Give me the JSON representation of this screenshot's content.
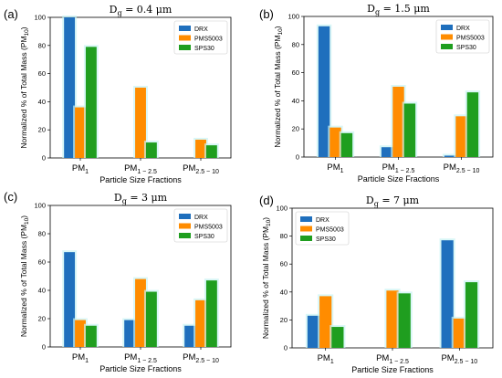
{
  "colors": {
    "DRX": "#1f6fbd",
    "PMS5003": "#ff8c00",
    "SPS30": "#1f9e1f",
    "highlight": "#c9f3f3"
  },
  "chart_data": [
    {
      "type": "bar",
      "panel": "(a)",
      "title": "Dg = 0.4 μm",
      "title_main": "D",
      "title_sub": "g",
      "title_rest": " = 0.4 μm",
      "xlabel": "Particle Size Fractions",
      "ylabel": "Normalized % of Total Mass (PM10)",
      "ylabel_main": "Normalized % of Total Mass (PM",
      "ylabel_sub": "10",
      "ylabel_end": ")",
      "ylim": [
        0,
        100
      ],
      "yticks": [
        "0",
        "20",
        "40",
        "60",
        "80",
        "100"
      ],
      "categories": [
        "PM1",
        "PM1−2.5",
        "PM2.5−10"
      ],
      "category_main": [
        "PM",
        "PM",
        "PM"
      ],
      "category_sub": [
        "1",
        "1 − 2.5",
        "2.5 − 10"
      ],
      "legend": "top-right",
      "series": [
        {
          "name": "DRX",
          "values": [
            100,
            0,
            0
          ]
        },
        {
          "name": "PMS5003",
          "values": [
            36,
            50,
            13
          ]
        },
        {
          "name": "SPS30",
          "values": [
            79,
            11,
            9
          ]
        }
      ]
    },
    {
      "type": "bar",
      "panel": "(b)",
      "title": "Dg = 1.5 μm",
      "title_main": "D",
      "title_sub": "g",
      "title_rest": " = 1.5 μm",
      "xlabel": "Particle Size Fractions",
      "ylabel": "Normalized % of Total Mass (PM10)",
      "ylabel_main": "Normalized % of Total Mass (PM",
      "ylabel_sub": "10",
      "ylabel_end": ")",
      "ylim": [
        0,
        100
      ],
      "yticks": [
        "0",
        "20",
        "40",
        "60",
        "80",
        "100"
      ],
      "categories": [
        "PM1",
        "PM1−2.5",
        "PM2.5−10"
      ],
      "category_main": [
        "PM",
        "PM",
        "PM"
      ],
      "category_sub": [
        "1",
        "1 − 2.5",
        "2.5 − 10"
      ],
      "legend": "top-right",
      "series": [
        {
          "name": "DRX",
          "values": [
            93,
            7,
            1
          ]
        },
        {
          "name": "PMS5003",
          "values": [
            21,
            50,
            29
          ]
        },
        {
          "name": "SPS30",
          "values": [
            17,
            38,
            46
          ]
        }
      ]
    },
    {
      "type": "bar",
      "panel": "(c)",
      "title": "Dg = 3 μm",
      "title_main": "D",
      "title_sub": "g",
      "title_rest": " = 3 μm",
      "xlabel": "Particle Size Fractions",
      "ylabel": "Normalized % of Total Mass (PM10)",
      "ylabel_main": "Normalized % of Total Mass (PM",
      "ylabel_sub": "10",
      "ylabel_end": ")",
      "ylim": [
        0,
        100
      ],
      "yticks": [
        "0",
        "20",
        "40",
        "60",
        "80",
        "100"
      ],
      "categories": [
        "PM1",
        "PM1−2.5",
        "PM2.5−10"
      ],
      "category_main": [
        "PM",
        "PM",
        "PM"
      ],
      "category_sub": [
        "1",
        "1 − 2.5",
        "2.5 − 10"
      ],
      "legend": "top-right",
      "series": [
        {
          "name": "DRX",
          "values": [
            67,
            19,
            15
          ]
        },
        {
          "name": "PMS5003",
          "values": [
            19,
            48,
            33
          ]
        },
        {
          "name": "SPS30",
          "values": [
            15,
            39,
            47
          ]
        }
      ]
    },
    {
      "type": "bar",
      "panel": "(d)",
      "title": "Dg = 7 μm",
      "title_main": "D",
      "title_sub": "g",
      "title_rest": " = 7 μm",
      "xlabel": "Particle Size Fractions",
      "ylabel": "Normalized % of Total Mass (PM10)",
      "ylabel_main": "Normalized % of Total Mass (PM",
      "ylabel_sub": "10",
      "ylabel_end": ")",
      "ylim": [
        0,
        100
      ],
      "yticks": [
        "0",
        "20",
        "40",
        "60",
        "80",
        "100"
      ],
      "categories": [
        "PM1",
        "PM1−2.5",
        "PM2.5−10"
      ],
      "category_main": [
        "PM",
        "PM",
        "PM"
      ],
      "category_sub": [
        "1",
        "1 − 2.5",
        "2.5 − 10"
      ],
      "legend": "top-left",
      "series": [
        {
          "name": "DRX",
          "values": [
            23,
            0,
            77
          ]
        },
        {
          "name": "PMS5003",
          "values": [
            37,
            41,
            21
          ]
        },
        {
          "name": "SPS30",
          "values": [
            15,
            39,
            47
          ]
        }
      ]
    }
  ]
}
